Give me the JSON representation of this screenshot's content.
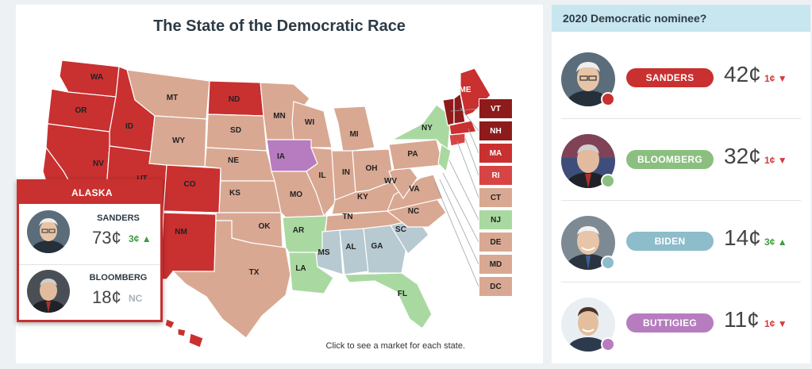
{
  "map": {
    "title": "The State of the Democratic Race",
    "hint": "Click to see a market for each state.",
    "colors": {
      "sanders": "#c93030",
      "sanders_dark": "#8e1b1b",
      "sanders_mid": "#d74444",
      "buttigieg": "#b77cc0",
      "biden": "#a9d9a1",
      "bloomberg": "#b7c9d1",
      "none": "#d9a892"
    },
    "states": [
      "WA",
      "OR",
      "ID",
      "NV",
      "UT",
      "CO",
      "NM",
      "MT",
      "WY",
      "ND",
      "SD",
      "NE",
      "KS",
      "OK",
      "TX",
      "MN",
      "WI",
      "IA",
      "MO",
      "AR",
      "LA",
      "MI",
      "IL",
      "IN",
      "OH",
      "KY",
      "TN",
      "MS",
      "AL",
      "GA",
      "FL",
      "SC",
      "NC",
      "VA",
      "WV",
      "PA",
      "NY",
      "ME"
    ],
    "ne_boxes": [
      {
        "label": "VT",
        "color": "#8e1b1b",
        "text": "#ffffff"
      },
      {
        "label": "NH",
        "color": "#8e1b1b",
        "text": "#ffffff"
      },
      {
        "label": "MA",
        "color": "#c93030",
        "text": "#ffffff"
      },
      {
        "label": "RI",
        "color": "#d74444",
        "text": "#ffffff"
      },
      {
        "label": "CT",
        "color": "#d9a892",
        "text": "#222222"
      },
      {
        "label": "NJ",
        "color": "#a9d9a1",
        "text": "#222222"
      },
      {
        "label": "DE",
        "color": "#d9a892",
        "text": "#222222"
      },
      {
        "label": "MD",
        "color": "#d9a892",
        "text": "#222222"
      },
      {
        "label": "DC",
        "color": "#d9a892",
        "text": "#222222"
      }
    ]
  },
  "popup": {
    "state": "ALASKA",
    "rows": [
      {
        "name": "SANDERS",
        "price": "73¢",
        "change": "3¢",
        "direction": "up"
      },
      {
        "name": "BLOOMBERG",
        "price": "18¢",
        "change": "NC",
        "direction": "none"
      }
    ]
  },
  "nominee": {
    "title": "2020 Democratic nominee?",
    "candidates": [
      {
        "name": "SANDERS",
        "price": "42¢",
        "change": "1¢",
        "direction": "down",
        "color": "#c93030"
      },
      {
        "name": "BLOOMBERG",
        "price": "32¢",
        "change": "1¢",
        "direction": "down",
        "color": "#8bbf80"
      },
      {
        "name": "BIDEN",
        "price": "14¢",
        "change": "3¢",
        "direction": "up",
        "color": "#8dbcca"
      },
      {
        "name": "BUTTIGIEG",
        "price": "11¢",
        "change": "1¢",
        "direction": "down",
        "color": "#b77cc0"
      }
    ]
  }
}
